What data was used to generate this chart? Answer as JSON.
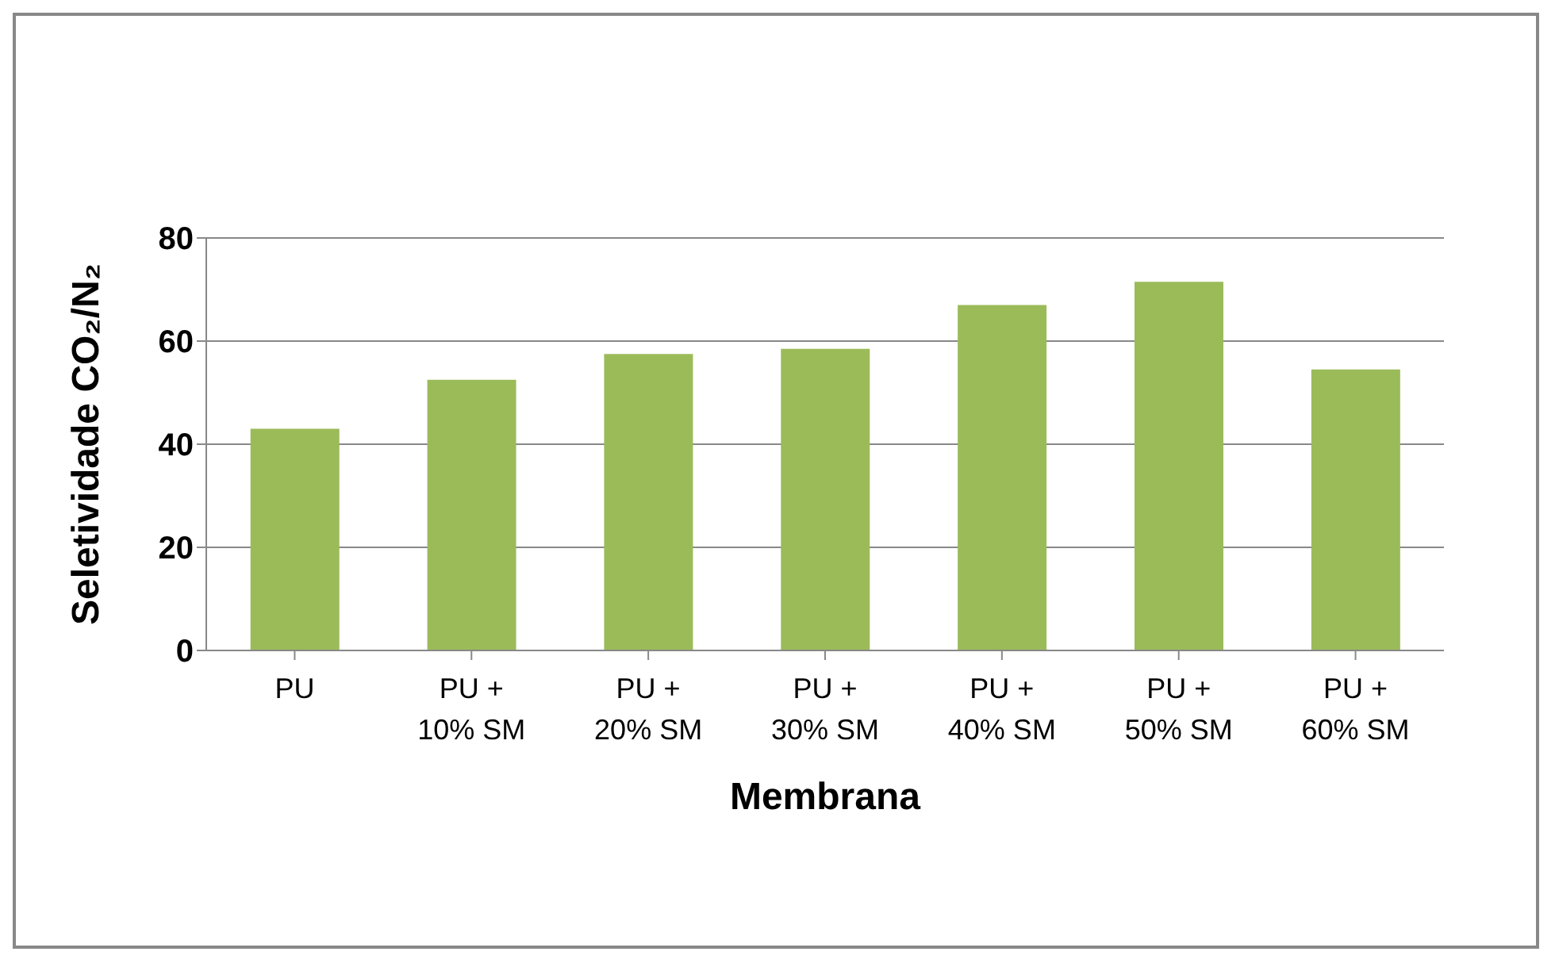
{
  "chart_data": {
    "type": "bar",
    "xlabel": "Membrana",
    "ylabel": "Seletividade CO₂/N₂",
    "categories": [
      "PU",
      "PU + 10% SM",
      "PU + 20% SM",
      "PU + 30% SM",
      "PU + 40% SM",
      "PU + 50% SM",
      "PU + 60% SM"
    ],
    "values": [
      43,
      52.5,
      57.5,
      58.5,
      67,
      71.5,
      54.5
    ],
    "color": "#9bbb59",
    "ylim": [
      0,
      80
    ],
    "yticks": [
      0,
      20,
      40,
      60,
      80
    ],
    "grid": "y"
  }
}
